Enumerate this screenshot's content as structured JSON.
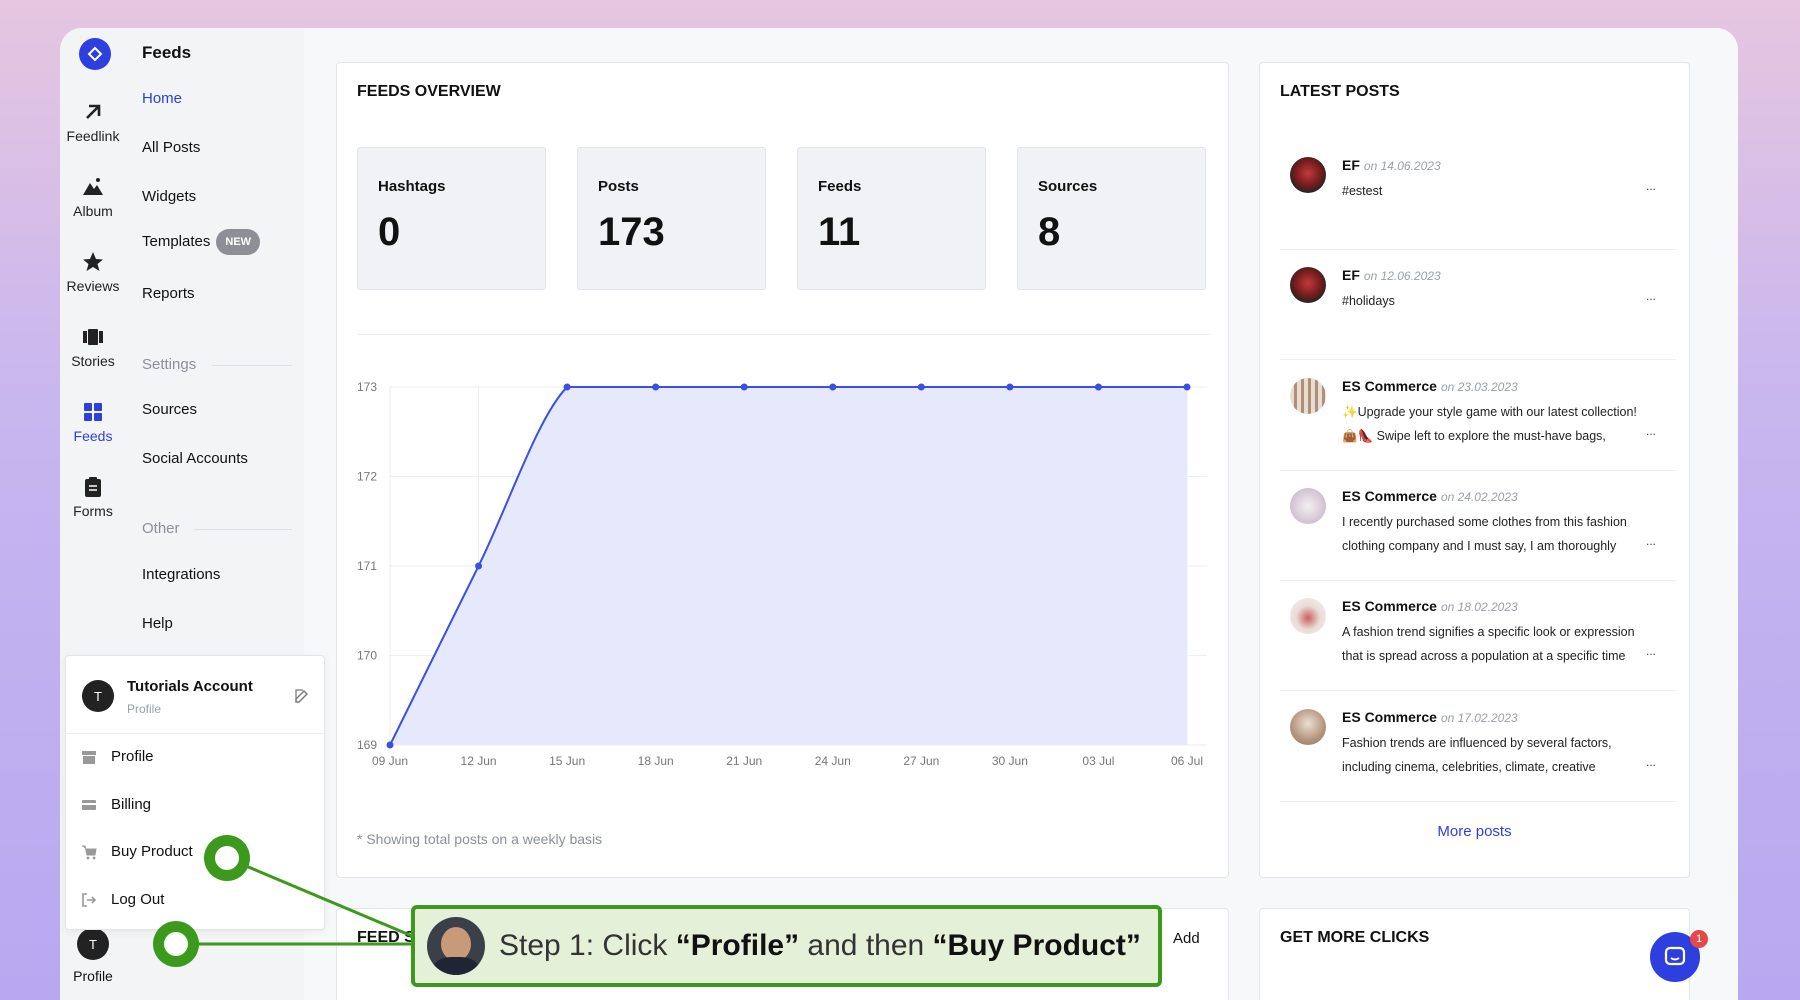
{
  "rail": {
    "items": [
      {
        "label": "Feedlink",
        "icon": "arrow-up-right-icon"
      },
      {
        "label": "Album",
        "icon": "mountain-icon"
      },
      {
        "label": "Reviews",
        "icon": "star-icon"
      },
      {
        "label": "Stories",
        "icon": "stories-icon"
      },
      {
        "label": "Feeds",
        "icon": "grid-icon"
      },
      {
        "label": "Forms",
        "icon": "clipboard-icon"
      }
    ],
    "profile_label": "Profile",
    "profile_initial": "T"
  },
  "nav": {
    "title": "Feeds",
    "items": [
      "Home",
      "All Posts",
      "Widgets",
      "Templates",
      "Reports"
    ],
    "new_badge": "NEW",
    "settings_label": "Settings",
    "settings_items": [
      "Sources",
      "Social Accounts"
    ],
    "other_label": "Other",
    "other_items": [
      "Integrations",
      "Help"
    ]
  },
  "overview": {
    "title": "FEEDS OVERVIEW",
    "stats": [
      {
        "label": "Hashtags",
        "value": "0"
      },
      {
        "label": "Posts",
        "value": "173"
      },
      {
        "label": "Feeds",
        "value": "11"
      },
      {
        "label": "Sources",
        "value": "8"
      }
    ],
    "note": "* Showing total posts on a weekly basis"
  },
  "chart_data": {
    "type": "area",
    "title": "",
    "xlabel": "",
    "ylabel": "",
    "categories": [
      "09 Jun",
      "12 Jun",
      "15 Jun",
      "18 Jun",
      "21 Jun",
      "24 Jun",
      "27 Jun",
      "30 Jun",
      "03 Jul",
      "06 Jul"
    ],
    "values": [
      169,
      171,
      173,
      173,
      173,
      173,
      173,
      173,
      173,
      173
    ],
    "ylim": [
      169,
      173
    ],
    "yticks": [
      "173",
      "172",
      "171",
      "170",
      "169"
    ],
    "grid": true,
    "color": "#3d4fe0",
    "fill": "#e6e8fb"
  },
  "latest": {
    "title": "LATEST POSTS",
    "posts": [
      {
        "name": "EF",
        "date": "on 14.06.2023",
        "lines": [
          "#estest"
        ]
      },
      {
        "name": "EF",
        "date": "on 12.06.2023",
        "lines": [
          "#holidays"
        ]
      },
      {
        "name": "ES Commerce",
        "date": "on 23.03.2023",
        "lines": [
          "✨Upgrade your style game with our latest collection!",
          "👜👠 Swipe left to explore the must-have bags,"
        ]
      },
      {
        "name": "ES Commerce",
        "date": "on 24.02.2023",
        "lines": [
          "I recently purchased some clothes from this fashion",
          "clothing company and I must say, I am thoroughly"
        ]
      },
      {
        "name": "ES Commerce",
        "date": "on 18.02.2023",
        "lines": [
          "A fashion trend signifies a specific look or expression",
          "that is spread across a population at a specific time"
        ]
      },
      {
        "name": "ES Commerce",
        "date": "on 17.02.2023",
        "lines": [
          "Fashion trends are influenced by several factors,",
          "including cinema, celebrities, climate, creative"
        ]
      }
    ],
    "ellipsis": "...",
    "more": "More posts"
  },
  "feeds_section": {
    "title": "FEED S",
    "add": "Add"
  },
  "get_more": {
    "title": "GET MORE CLICKS"
  },
  "popup": {
    "account": "Tutorials Account",
    "sub": "Profile",
    "initial": "T",
    "items": [
      "Profile",
      "Billing",
      "Buy Product",
      "Log Out"
    ]
  },
  "step": {
    "prefix": "Step 1: Click ",
    "first": "“Profile”",
    "middle": " and then ",
    "second": "“Buy Product”"
  },
  "chat_badge": "1",
  "colors": {
    "accent": "#2e3fe0",
    "annotation": "#3b9a1c"
  }
}
